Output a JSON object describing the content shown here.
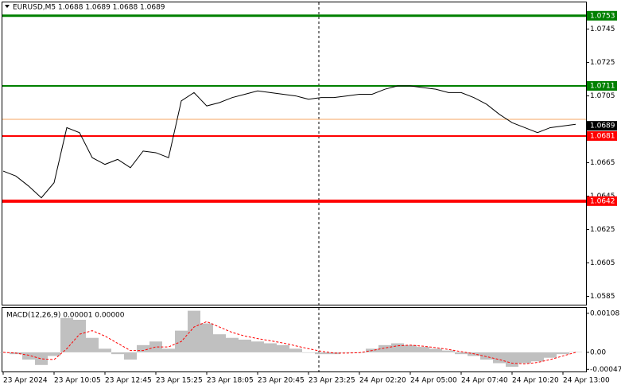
{
  "chart_data": [
    {
      "type": "line",
      "title": "EURUSD,M5  1.0688 1.0689 1.0688 1.0689",
      "categories": [
        "23 Apr 2024",
        null,
        null,
        null,
        "23 Apr 10:05",
        null,
        null,
        null,
        "23 Apr 12:45",
        null,
        null,
        null,
        "23 Apr 15:25",
        null,
        null,
        null,
        "23 Apr 18:05",
        null,
        null,
        null,
        "23 Apr 20:45",
        null,
        null,
        null,
        "23 Apr 23:25",
        null,
        null,
        null,
        "24 Apr 02:20",
        null,
        null,
        null,
        "24 Apr 05:00",
        null,
        null,
        null,
        "24 Apr 07:40",
        null,
        null,
        null,
        "24 Apr 10:20",
        null,
        null,
        null,
        "24 Apr 13:00",
        null
      ],
      "values": [
        1.066,
        1.0657,
        1.0651,
        1.0644,
        1.0653,
        1.0686,
        1.0683,
        1.0668,
        1.0664,
        1.0667,
        1.0662,
        1.0672,
        1.0671,
        1.0668,
        1.0702,
        1.0707,
        1.0699,
        1.0701,
        1.0704,
        1.0706,
        1.0708,
        1.0707,
        1.0706,
        1.0705,
        1.0703,
        1.0704,
        1.0704,
        1.0705,
        1.0706,
        1.0706,
        1.0709,
        1.0711,
        1.0711,
        1.071,
        1.0709,
        1.0707,
        1.0707,
        1.0704,
        1.07,
        1.0694,
        1.0689,
        1.0686,
        1.0683,
        1.0686,
        1.0687,
        1.0688
      ],
      "color": "#000000",
      "ylim": [
        1.058,
        1.0761
      ],
      "yticks": [
        1.0745,
        1.0725,
        1.0705,
        1.0665,
        1.0645,
        1.0625,
        1.0605,
        1.0585
      ],
      "levels": [
        {
          "value": 1.0753,
          "color": "#008000",
          "width": 3
        },
        {
          "value": 1.0711,
          "color": "#008000",
          "width": 2
        },
        {
          "value": 1.0681,
          "color": "#ff0000",
          "width": 2
        },
        {
          "value": 1.0642,
          "color": "#ff0000",
          "width": 4
        }
      ],
      "ask": {
        "value": 1.0691,
        "color": "#f4a460"
      },
      "bid": {
        "value": 1.0689,
        "color": "#000000"
      }
    },
    {
      "type": "macd",
      "title": "MACD(12,26,9) 0.00001 0.00000",
      "values": [
        0.0,
        -5e-05,
        -0.0002,
        -0.00035,
        -0.0001,
        0.00095,
        0.0009,
        0.0004,
        0.0001,
        -5e-05,
        -0.0002,
        0.0002,
        0.0003,
        0.0001,
        0.0006,
        0.00115,
        0.0008,
        0.0005,
        0.0004,
        0.00035,
        0.0003,
        0.00025,
        0.0002,
        0.0001,
        0.0,
        -5e-05,
        -5e-05,
        0.0,
        0.0,
        0.0001,
        0.0002,
        0.00025,
        0.0002,
        0.00015,
        0.0001,
        5e-05,
        -5e-05,
        -0.0001,
        -0.0002,
        -0.0003,
        -0.0004,
        -0.0003,
        -0.00025,
        -0.00015,
        -5e-05,
        1e-05
      ],
      "color": "#c0c0c0",
      "signal_values": [
        0.0,
        -2e-05,
        -8e-05,
        -0.00018,
        -0.0002,
        0.0001,
        0.0005,
        0.0006,
        0.00045,
        0.00025,
        5e-05,
        5e-05,
        0.00015,
        0.00015,
        0.0003,
        0.0007,
        0.00085,
        0.0007,
        0.00055,
        0.00045,
        0.00038,
        0.00032,
        0.00026,
        0.00018,
        0.0001,
        3e-05,
        -2e-05,
        -2e-05,
        -1e-05,
        5e-05,
        0.00012,
        0.00018,
        0.0002,
        0.00017,
        0.00013,
        8e-05,
        2e-05,
        -4e-05,
        -0.00012,
        -0.0002,
        -0.0003,
        -0.00032,
        -0.00028,
        -0.0002,
        -0.0001,
        0.0
      ],
      "signal_color": "#ff0000",
      "ylim": [
        -0.00053,
        0.00123
      ],
      "yticks": [
        0.00108,
        {
          "value": 0,
          "label": "0.00"
        },
        -0.00047
      ]
    }
  ]
}
